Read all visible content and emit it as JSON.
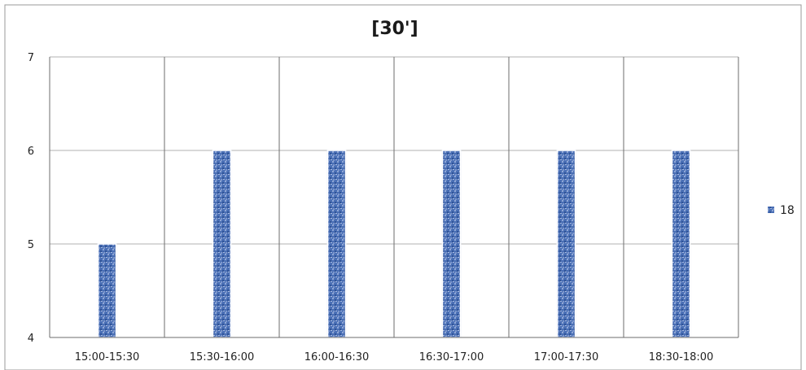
{
  "chart_data": {
    "type": "bar",
    "title": "[30']",
    "xlabel": "",
    "ylabel": "",
    "categories": [
      "15:00-15:30",
      "15:30-16:00",
      "16:00-16:30",
      "16:30-17:00",
      "17:00-17:30",
      "18:30-18:00"
    ],
    "series": [
      {
        "name": "18",
        "values": [
          5,
          6,
          6,
          6,
          6,
          6
        ],
        "color": "#4a6fb5"
      }
    ],
    "ylim": [
      4,
      7
    ],
    "yticks": [
      4,
      5,
      6,
      7
    ],
    "grid": true,
    "legend_position": "right",
    "colors": {
      "bar": "#4a6fb5",
      "bar_light": "#8fa7d6",
      "grid": "#b0b0b0",
      "axis": "#6e6e6e",
      "frame": "#9a9a9a"
    }
  }
}
